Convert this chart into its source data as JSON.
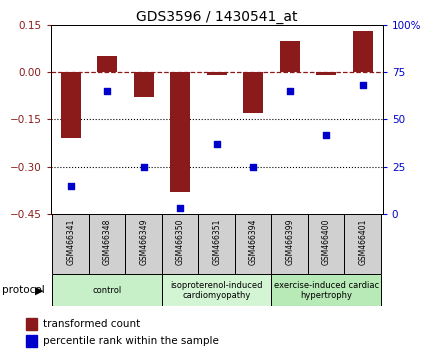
{
  "title": "GDS3596 / 1430541_at",
  "samples": [
    "GSM466341",
    "GSM466348",
    "GSM466349",
    "GSM466350",
    "GSM466351",
    "GSM466394",
    "GSM466399",
    "GSM466400",
    "GSM466401"
  ],
  "bar_values": [
    -0.21,
    0.05,
    -0.08,
    -0.38,
    -0.01,
    -0.13,
    0.1,
    -0.01,
    0.13
  ],
  "dot_values": [
    15,
    65,
    25,
    3,
    37,
    25,
    65,
    42,
    68
  ],
  "ylim_left": [
    -0.45,
    0.15
  ],
  "ylim_right": [
    0,
    100
  ],
  "yticks_left": [
    0.15,
    0.0,
    -0.15,
    -0.3,
    -0.45
  ],
  "yticks_right": [
    100,
    75,
    50,
    25,
    0
  ],
  "bar_color": "#8B1A1A",
  "dot_color": "#0000CC",
  "dotted_lines": [
    -0.15,
    -0.3
  ],
  "group_boundaries": [
    [
      0,
      2,
      "control",
      "#c8f0c8"
    ],
    [
      3,
      5,
      "isoproterenol-induced\ncardiomyopathy",
      "#d4f5d4"
    ],
    [
      6,
      8,
      "exercise-induced cardiac\nhypertrophy",
      "#b8eab8"
    ]
  ],
  "legend_bar_label": "transformed count",
  "legend_dot_label": "percentile rank within the sample",
  "protocol_label": "protocol"
}
